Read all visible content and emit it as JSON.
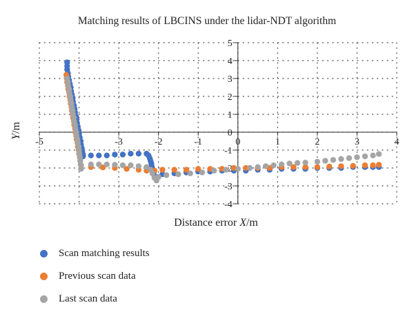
{
  "chart_data": {
    "type": "scatter",
    "title": "Matching results of LBCINS under the lidar-NDT algorithm",
    "xlabel_text": "Distance error ",
    "xlabel_var": "X",
    "xlabel_unit": "/m",
    "ylabel_var": "Y",
    "ylabel_unit": "/m",
    "xlim": [
      -5,
      4
    ],
    "ylim": [
      -4,
      5
    ],
    "x_ticks": [
      "-5",
      "-4",
      "-3",
      "-2",
      "-1",
      "0",
      "1",
      "2",
      "3",
      "4"
    ],
    "y_ticks": [
      "-4",
      "-3",
      "-2",
      "-1",
      "0",
      "1",
      "2",
      "3",
      "4",
      "5"
    ],
    "grid": "dotted",
    "legend_position": "bottom-left",
    "series": [
      {
        "name": "Scan matching results",
        "color": "#4472c4",
        "points": [
          [
            -4.3,
            3.9
          ],
          [
            -4.3,
            3.7
          ],
          [
            -4.3,
            3.5
          ],
          [
            -4.28,
            3.3
          ],
          [
            -4.27,
            3.1
          ],
          [
            -4.25,
            2.9
          ],
          [
            -4.23,
            2.7
          ],
          [
            -4.21,
            2.5
          ],
          [
            -4.2,
            2.3
          ],
          [
            -4.18,
            2.1
          ],
          [
            -4.16,
            1.9
          ],
          [
            -4.15,
            1.7
          ],
          [
            -4.13,
            1.5
          ],
          [
            -4.11,
            1.3
          ],
          [
            -4.1,
            1.1
          ],
          [
            -4.08,
            0.9
          ],
          [
            -4.06,
            0.7
          ],
          [
            -4.05,
            0.5
          ],
          [
            -4.03,
            0.3
          ],
          [
            -4.01,
            0.1
          ],
          [
            -4.0,
            -0.1
          ],
          [
            -3.98,
            -0.3
          ],
          [
            -3.96,
            -0.5
          ],
          [
            -3.95,
            -0.7
          ],
          [
            -3.93,
            -0.9
          ],
          [
            -3.92,
            -1.1
          ],
          [
            -3.9,
            -1.25
          ],
          [
            -3.9,
            -1.35
          ],
          [
            -3.7,
            -1.3
          ],
          [
            -3.5,
            -1.3
          ],
          [
            -3.3,
            -1.3
          ],
          [
            -3.1,
            -1.25
          ],
          [
            -2.9,
            -1.25
          ],
          [
            -2.7,
            -1.2
          ],
          [
            -2.5,
            -1.2
          ],
          [
            -2.3,
            -1.2
          ],
          [
            -2.25,
            -1.3
          ],
          [
            -2.22,
            -1.45
          ],
          [
            -2.2,
            -1.6
          ],
          [
            -2.18,
            -1.75
          ],
          [
            -2.17,
            -1.9
          ],
          [
            -2.15,
            -2.05
          ],
          [
            -2.13,
            -2.2
          ],
          [
            -2.12,
            -2.35
          ],
          [
            -2.1,
            -2.45
          ],
          [
            -1.9,
            -2.35
          ],
          [
            -1.6,
            -2.3
          ],
          [
            -1.3,
            -2.25
          ],
          [
            -1.0,
            -2.2
          ],
          [
            -0.7,
            -2.2
          ],
          [
            -0.4,
            -2.15
          ],
          [
            -0.1,
            -2.15
          ],
          [
            0.2,
            -2.15
          ],
          [
            0.5,
            -2.1
          ],
          [
            0.8,
            -2.1
          ],
          [
            1.1,
            -2.05
          ],
          [
            1.4,
            -2.05
          ],
          [
            1.7,
            -2.05
          ],
          [
            2.0,
            -2.0
          ],
          [
            2.3,
            -2.0
          ],
          [
            2.6,
            -2.0
          ],
          [
            2.9,
            -1.95
          ],
          [
            3.2,
            -1.95
          ],
          [
            3.4,
            -1.95
          ],
          [
            3.55,
            -1.95
          ]
        ]
      },
      {
        "name": "Previous scan data",
        "color": "#ed7d31",
        "points": [
          [
            -4.32,
            3.2
          ],
          [
            -4.31,
            3.0
          ],
          [
            -4.3,
            2.8
          ],
          [
            -4.28,
            2.6
          ],
          [
            -4.27,
            2.4
          ],
          [
            -4.25,
            2.2
          ],
          [
            -4.24,
            2.0
          ],
          [
            -4.22,
            1.8
          ],
          [
            -4.21,
            1.6
          ],
          [
            -4.19,
            1.4
          ],
          [
            -4.18,
            1.2
          ],
          [
            -4.16,
            1.0
          ],
          [
            -4.15,
            0.8
          ],
          [
            -4.13,
            0.6
          ],
          [
            -4.12,
            0.4
          ],
          [
            -4.1,
            0.2
          ],
          [
            -4.09,
            0.0
          ],
          [
            -4.07,
            -0.2
          ],
          [
            -4.06,
            -0.4
          ],
          [
            -4.04,
            -0.6
          ],
          [
            -4.03,
            -0.8
          ],
          [
            -4.01,
            -1.0
          ],
          [
            -4.0,
            -1.2
          ],
          [
            -3.98,
            -1.4
          ],
          [
            -3.97,
            -1.6
          ],
          [
            -3.95,
            -1.85
          ],
          [
            -3.7,
            -1.95
          ],
          [
            -3.4,
            -1.97
          ],
          [
            -3.1,
            -2.0
          ],
          [
            -2.8,
            -2.05
          ],
          [
            -2.5,
            -2.1
          ],
          [
            -2.3,
            -2.15
          ],
          [
            -2.1,
            -2.15
          ],
          [
            -1.9,
            -2.1
          ],
          [
            -1.6,
            -2.1
          ],
          [
            -1.3,
            -2.1
          ],
          [
            -1.0,
            -2.05
          ],
          [
            -0.7,
            -2.05
          ],
          [
            -0.4,
            -2.05
          ],
          [
            -0.1,
            -2.0
          ],
          [
            0.2,
            -2.0
          ],
          [
            0.5,
            -2.0
          ],
          [
            0.8,
            -2.0
          ],
          [
            1.1,
            -1.95
          ],
          [
            1.4,
            -1.95
          ],
          [
            1.7,
            -1.95
          ],
          [
            2.0,
            -1.95
          ],
          [
            2.3,
            -1.92
          ],
          [
            2.6,
            -1.9
          ],
          [
            2.9,
            -1.88
          ],
          [
            3.2,
            -1.85
          ],
          [
            3.4,
            -1.85
          ],
          [
            3.55,
            -1.82
          ]
        ]
      },
      {
        "name": "Last scan data",
        "color": "#a5a5a5",
        "points": [
          [
            -4.3,
            3.0
          ],
          [
            -4.28,
            2.8
          ],
          [
            -4.27,
            2.6
          ],
          [
            -4.25,
            2.4
          ],
          [
            -4.24,
            2.2
          ],
          [
            -4.22,
            2.0
          ],
          [
            -4.21,
            1.8
          ],
          [
            -4.19,
            1.6
          ],
          [
            -4.18,
            1.4
          ],
          [
            -4.16,
            1.2
          ],
          [
            -4.15,
            1.0
          ],
          [
            -4.13,
            0.8
          ],
          [
            -4.12,
            0.6
          ],
          [
            -4.1,
            0.4
          ],
          [
            -4.09,
            0.2
          ],
          [
            -4.07,
            0.0
          ],
          [
            -4.06,
            -0.2
          ],
          [
            -4.04,
            -0.4
          ],
          [
            -4.03,
            -0.6
          ],
          [
            -4.01,
            -0.8
          ],
          [
            -4.0,
            -1.0
          ],
          [
            -3.99,
            -1.2
          ],
          [
            -3.98,
            -1.4
          ],
          [
            -3.97,
            -1.6
          ],
          [
            -3.96,
            -1.8
          ],
          [
            -3.95,
            -2.05
          ],
          [
            -3.7,
            -1.8
          ],
          [
            -3.5,
            -1.8
          ],
          [
            -3.3,
            -1.8
          ],
          [
            -3.1,
            -1.82
          ],
          [
            -2.9,
            -1.85
          ],
          [
            -2.7,
            -1.85
          ],
          [
            -2.5,
            -1.9
          ],
          [
            -2.3,
            -1.95
          ],
          [
            -2.2,
            -2.1
          ],
          [
            -2.15,
            -2.3
          ],
          [
            -2.1,
            -2.55
          ],
          [
            -2.05,
            -2.7
          ],
          [
            -2.0,
            -2.5
          ],
          [
            -1.8,
            -2.4
          ],
          [
            -1.5,
            -2.35
          ],
          [
            -1.2,
            -2.3
          ],
          [
            -0.9,
            -2.25
          ],
          [
            -0.6,
            -2.15
          ],
          [
            -0.3,
            -2.1
          ],
          [
            0.0,
            -2.05
          ],
          [
            0.3,
            -2.0
          ],
          [
            0.5,
            -1.95
          ],
          [
            0.7,
            -1.9
          ],
          [
            0.9,
            -1.85
          ],
          [
            1.1,
            -1.8
          ],
          [
            1.3,
            -1.75
          ],
          [
            1.5,
            -1.72
          ],
          [
            1.7,
            -1.7
          ],
          [
            2.0,
            -1.65
          ],
          [
            2.2,
            -1.6
          ],
          [
            2.4,
            -1.55
          ],
          [
            2.6,
            -1.5
          ],
          [
            2.8,
            -1.45
          ],
          [
            3.0,
            -1.4
          ],
          [
            3.2,
            -1.35
          ],
          [
            3.4,
            -1.3
          ],
          [
            3.55,
            -1.22
          ]
        ]
      }
    ]
  }
}
